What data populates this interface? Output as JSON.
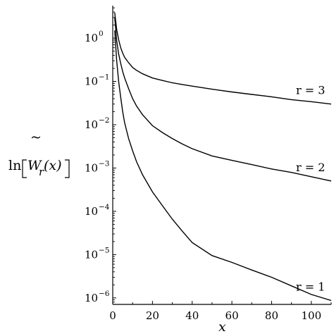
{
  "chart_data": {
    "type": "line",
    "xlabel": "x",
    "ylabel_parts": {
      "fn": "ln",
      "tilde": "~",
      "var": "W",
      "sub": "r",
      "arg": "(x)"
    },
    "y_scale": "log",
    "xlim": [
      0,
      110
    ],
    "ylim_log10": [
      -6.15,
      0.75
    ],
    "x_ticks": [
      {
        "value": 0,
        "label": "0"
      },
      {
        "value": 20,
        "label": "20"
      },
      {
        "value": 40,
        "label": "40"
      },
      {
        "value": 60,
        "label": "60"
      },
      {
        "value": 80,
        "label": "80"
      },
      {
        "value": 100,
        "label": "100"
      }
    ],
    "y_ticks": [
      {
        "exp": 0,
        "base": "10",
        "exp_label": "0"
      },
      {
        "exp": -1,
        "base": "10",
        "exp_label": "−1"
      },
      {
        "exp": -2,
        "base": "10",
        "exp_label": "−2"
      },
      {
        "exp": -3,
        "base": "10",
        "exp_label": "−3"
      },
      {
        "exp": -4,
        "base": "10",
        "exp_label": "−4"
      },
      {
        "exp": -5,
        "base": "10",
        "exp_label": "−5"
      },
      {
        "exp": -6,
        "base": "10",
        "exp_label": "−6"
      }
    ],
    "grid": false,
    "legend": "none",
    "line_color": "#000000",
    "series": [
      {
        "name": "r = 1",
        "points": [
          [
            1,
            1.5
          ],
          [
            2,
            0.3
          ],
          [
            3,
            0.096
          ],
          [
            4,
            0.043
          ],
          [
            5,
            0.02
          ],
          [
            6,
            0.011
          ],
          [
            8,
            0.0048
          ],
          [
            10,
            0.0025
          ],
          [
            12,
            0.0014
          ],
          [
            15,
            0.0007
          ],
          [
            20,
            0.00028
          ],
          [
            25,
            0.000135
          ],
          [
            30,
            6.6e-05
          ],
          [
            35,
            3.5e-05
          ],
          [
            40,
            1.9e-05
          ],
          [
            50,
            9.5e-06
          ],
          [
            60,
            6.6e-06
          ],
          [
            70,
            4.4e-06
          ],
          [
            80,
            3e-06
          ],
          [
            90,
            1.9e-06
          ],
          [
            100,
            1.2e-06
          ],
          [
            110,
            8.7e-07
          ]
        ]
      },
      {
        "name": "r = 2",
        "points": [
          [
            1,
            3.0
          ],
          [
            2,
            0.87
          ],
          [
            3,
            0.42
          ],
          [
            4,
            0.26
          ],
          [
            5,
            0.17
          ],
          [
            6,
            0.12
          ],
          [
            8,
            0.068
          ],
          [
            10,
            0.04
          ],
          [
            12,
            0.027
          ],
          [
            15,
            0.017
          ],
          [
            20,
            0.0095
          ],
          [
            25,
            0.0066
          ],
          [
            30,
            0.0048
          ],
          [
            35,
            0.0036
          ],
          [
            40,
            0.0028
          ],
          [
            50,
            0.0019
          ],
          [
            60,
            0.0015
          ],
          [
            70,
            0.0012
          ],
          [
            80,
            0.00095
          ],
          [
            90,
            0.00079
          ],
          [
            100,
            0.00063
          ],
          [
            110,
            0.0005
          ]
        ]
      },
      {
        "name": "r = 3",
        "points": [
          [
            1,
            3.9
          ],
          [
            2,
            1.58
          ],
          [
            3,
            0.9
          ],
          [
            4,
            0.6
          ],
          [
            5,
            0.45
          ],
          [
            6,
            0.36
          ],
          [
            8,
            0.27
          ],
          [
            10,
            0.21
          ],
          [
            12,
            0.18
          ],
          [
            15,
            0.15
          ],
          [
            20,
            0.12
          ],
          [
            25,
            0.105
          ],
          [
            30,
            0.093
          ],
          [
            35,
            0.085
          ],
          [
            40,
            0.078
          ],
          [
            50,
            0.066
          ],
          [
            60,
            0.057
          ],
          [
            70,
            0.05
          ],
          [
            80,
            0.044
          ],
          [
            90,
            0.038
          ],
          [
            100,
            0.034
          ],
          [
            110,
            0.03
          ]
        ]
      }
    ]
  }
}
